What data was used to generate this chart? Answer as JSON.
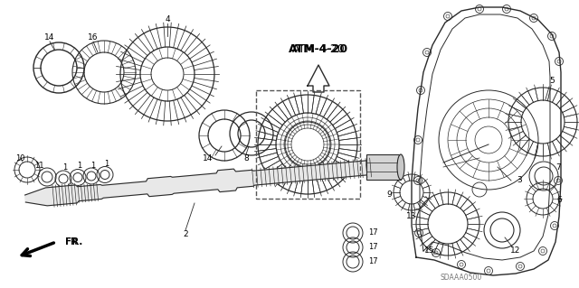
{
  "bg_color": "#ffffff",
  "title": "ATM-4-20",
  "diagram_code": "SDAAA0500",
  "fig_width": 6.4,
  "fig_height": 3.19,
  "dpi": 100
}
